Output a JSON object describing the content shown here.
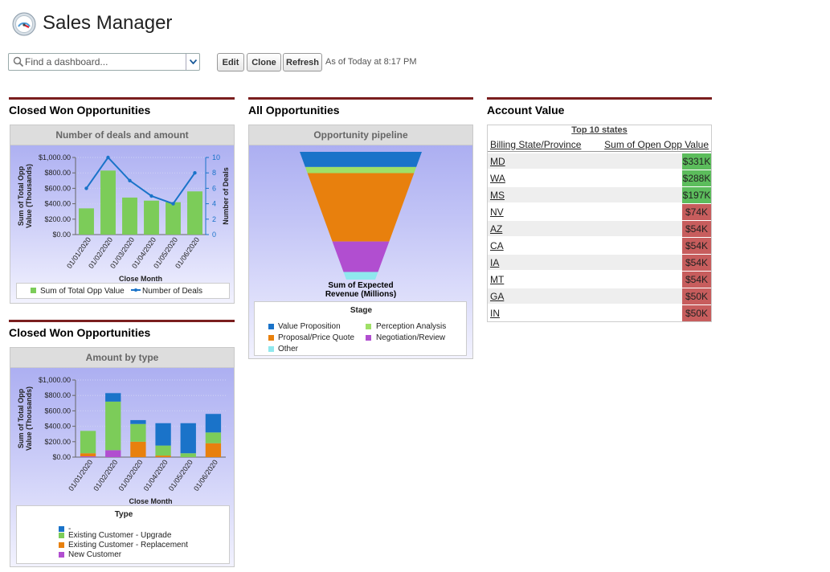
{
  "header": {
    "title": "Sales Manager",
    "search_placeholder": "Find a dashboard...",
    "edit": "Edit",
    "clone": "Clone",
    "refresh": "Refresh",
    "as_of": "As of Today at 8:17 PM"
  },
  "colors": {
    "green": "#7ccc59",
    "blue": "#1a73c9",
    "orange": "#e8800d",
    "purple": "#b14ed0",
    "cyan": "#8fe8ee",
    "lightgreen": "#9fe067",
    "pos": "#5cbd5c",
    "neg": "#c75d5d",
    "brand": "#7a1e1e"
  },
  "sections": {
    "col1_a": "Closed Won Opportunities",
    "col1_b": "Closed Won Opportunities",
    "col2": "All Opportunities",
    "col3": "Account Value"
  },
  "deals_chart": {
    "panel_title": "Number of deals and amount",
    "xlabel": "Close Month",
    "ylabel_left_1": "Sum of Total Opp",
    "ylabel_left_2": "Value (Thousands)",
    "ylabel_right": "Number of Deals",
    "left_ticks": [
      "$0.00",
      "$200.00",
      "$400.00",
      "$600.00",
      "$800.00",
      "$1,000.00"
    ],
    "right_ticks": [
      "0",
      "2",
      "4",
      "6",
      "8",
      "10"
    ],
    "legend": [
      "Sum of Total Opp Value",
      "Number of Deals"
    ]
  },
  "type_chart": {
    "panel_title": "Amount by type",
    "xlabel": "Close Month",
    "ylabel_left_1": "Sum of Total Opp",
    "ylabel_left_2": "Value (Thousands)",
    "legend_title": "Type",
    "left_ticks": [
      "$0.00",
      "$200.00",
      "$400.00",
      "$600.00",
      "$800.00",
      "$1,000.00"
    ],
    "legend": [
      "-",
      "Existing Customer - Upgrade",
      "Existing Customer - Replacement",
      "New Customer"
    ]
  },
  "funnel": {
    "panel_title": "Opportunity pipeline",
    "caption_1": "Sum of Expected",
    "caption_2": "Revenue (Millions)",
    "legend_title": "Stage",
    "legend": [
      "Value Proposition",
      "Perception Analysis",
      "Proposal/Price Quote",
      "Negotiation/Review",
      "Other"
    ]
  },
  "table": {
    "title": "Top 10 states",
    "col1": "Billing State/Province",
    "col2": "Sum of Open Opp Value",
    "rows": [
      {
        "state": "MD",
        "value": "$331K"
      },
      {
        "state": "WA",
        "value": "$288K"
      },
      {
        "state": "MS",
        "value": "$197K"
      },
      {
        "state": "NV",
        "value": "$74K"
      },
      {
        "state": "AZ",
        "value": "$54K"
      },
      {
        "state": "CA",
        "value": "$54K"
      },
      {
        "state": "IA",
        "value": "$54K"
      },
      {
        "state": "MT",
        "value": "$54K"
      },
      {
        "state": "GA",
        "value": "$50K"
      },
      {
        "state": "IN",
        "value": "$50K"
      }
    ]
  },
  "chart_data": [
    {
      "type": "bar",
      "title": "Number of deals and amount",
      "categories": [
        "01/01/2020",
        "01/02/2020",
        "01/03/2020",
        "01/04/2020",
        "01/05/2020",
        "01/06/2020"
      ],
      "series": [
        {
          "name": "Sum of Total Opp Value",
          "type": "bar",
          "values": [
            340,
            830,
            480,
            440,
            420,
            560
          ]
        },
        {
          "name": "Number of Deals",
          "type": "line",
          "axis": "right",
          "values": [
            6,
            10,
            7,
            5,
            4,
            8
          ]
        }
      ],
      "xlabel": "Close Month",
      "ylabel": "Sum of Total Opp Value (Thousands)",
      "ylabel_right": "Number of Deals",
      "ylim": [
        0,
        1000
      ],
      "ylim_right": [
        0,
        10
      ]
    },
    {
      "type": "bar",
      "stacked": true,
      "title": "Amount by type",
      "categories": [
        "01/01/2020",
        "01/02/2020",
        "01/03/2020",
        "01/04/2020",
        "01/05/2020",
        "01/06/2020"
      ],
      "series": [
        {
          "name": "New Customer",
          "values": [
            10,
            90,
            0,
            0,
            0,
            0
          ]
        },
        {
          "name": "Existing Customer - Replacement",
          "values": [
            40,
            0,
            200,
            20,
            0,
            180
          ]
        },
        {
          "name": "Existing Customer - Upgrade",
          "values": [
            290,
            630,
            230,
            130,
            50,
            140
          ]
        },
        {
          "name": "-",
          "values": [
            0,
            110,
            50,
            290,
            390,
            240
          ]
        }
      ],
      "xlabel": "Close Month",
      "ylabel": "Sum of Total Opp Value (Thousands)",
      "ylim": [
        0,
        1000
      ]
    },
    {
      "type": "funnel",
      "title": "Opportunity pipeline",
      "categories": [
        "Value Proposition",
        "Perception Analysis",
        "Proposal/Price Quote",
        "Negotiation/Review",
        "Other"
      ],
      "values": [
        1.0,
        0.4,
        4.5,
        2.0,
        0.5
      ],
      "label": "Sum of Expected Revenue (Millions)"
    }
  ]
}
